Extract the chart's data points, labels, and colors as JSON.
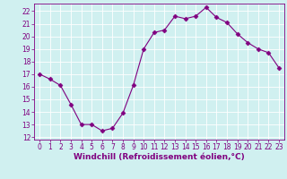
{
  "x": [
    0,
    1,
    2,
    3,
    4,
    5,
    6,
    7,
    8,
    9,
    10,
    11,
    12,
    13,
    14,
    15,
    16,
    17,
    18,
    19,
    20,
    21,
    22,
    23
  ],
  "y": [
    17.0,
    16.6,
    16.1,
    14.6,
    13.0,
    13.0,
    12.5,
    12.7,
    13.9,
    16.1,
    19.0,
    20.3,
    20.5,
    21.6,
    21.4,
    21.6,
    22.3,
    21.5,
    21.1,
    20.2,
    19.5,
    19.0,
    18.7,
    17.5
  ],
  "line_color": "#800080",
  "marker": "D",
  "marker_size": 2.5,
  "bg_color": "#d0f0f0",
  "grid_color": "#ffffff",
  "xlabel": "Windchill (Refroidissement éolien,°C)",
  "xlim": [
    -0.5,
    23.5
  ],
  "ylim": [
    11.8,
    22.6
  ],
  "yticks": [
    12,
    13,
    14,
    15,
    16,
    17,
    18,
    19,
    20,
    21,
    22
  ],
  "xticks": [
    0,
    1,
    2,
    3,
    4,
    5,
    6,
    7,
    8,
    9,
    10,
    11,
    12,
    13,
    14,
    15,
    16,
    17,
    18,
    19,
    20,
    21,
    22,
    23
  ],
  "tick_color": "#800080",
  "label_color": "#800080",
  "tick_fontsize": 5.5,
  "xlabel_fontsize": 6.5
}
